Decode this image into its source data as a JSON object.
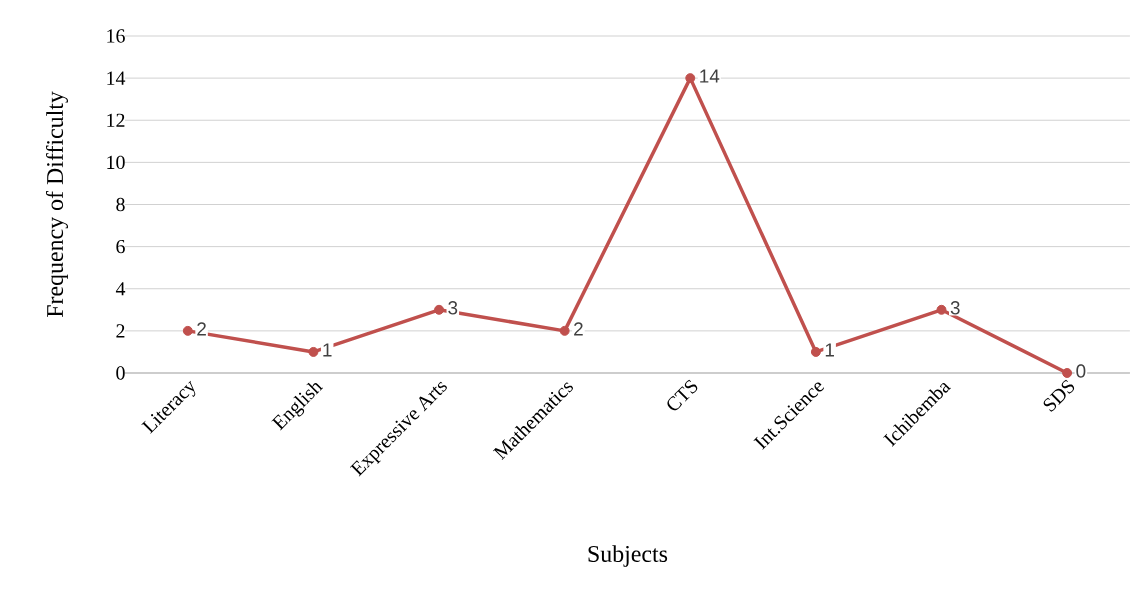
{
  "chart_data": {
    "type": "line",
    "xlabel": "Subjects",
    "ylabel": "Frequency of Difficulty",
    "categories": [
      "Literacy",
      "English",
      "Expressive Arts",
      "Mathematics",
      "CTS",
      "Int.Science",
      "Ichibemba",
      "SDS"
    ],
    "series": [
      {
        "color": "#c0504d",
        "values": [
          2,
          1,
          3,
          2,
          14,
          1,
          3,
          0
        ]
      }
    ],
    "ylim": [
      0,
      16
    ],
    "yticks": [
      0,
      2,
      4,
      6,
      8,
      10,
      12,
      14,
      16
    ],
    "grid": "y",
    "marker": "circle",
    "line_style": "solid",
    "data_labels": true
  }
}
